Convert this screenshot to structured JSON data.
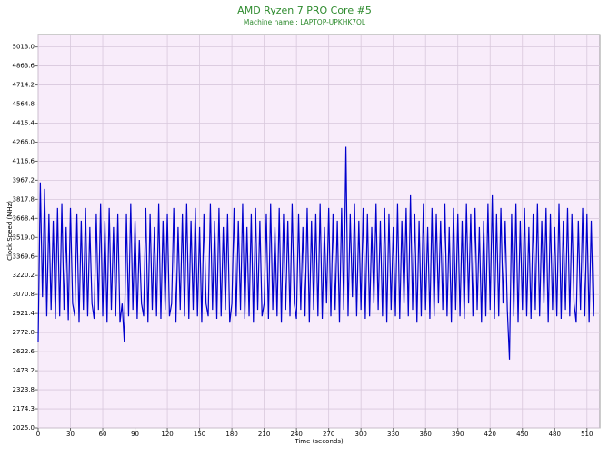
{
  "chart_data": {
    "type": "line",
    "title": "AMD Ryzen 7 PRO Core #5",
    "subtitle": "Machine name : LAPTOP-UPKHK7OL",
    "x_label": "Time (seconds)",
    "y_label": "Clock Speed (MHz)",
    "xlim": [
      0,
      522
    ],
    "xticks": [
      0,
      30,
      60,
      90,
      120,
      150,
      180,
      210,
      240,
      270,
      300,
      330,
      360,
      390,
      420,
      450,
      480,
      510
    ],
    "ylim": [
      2025,
      5110
    ],
    "yticks": [
      {
        "value": 2025,
        "label": "2025.0"
      },
      {
        "value": 2174.3,
        "label": "2174.3"
      },
      {
        "value": 2323.8,
        "label": "2323.8"
      },
      {
        "value": 2473.2,
        "label": "2473.2"
      },
      {
        "value": 2622.6,
        "label": "2622.6"
      },
      {
        "value": 2772,
        "label": "2772.0"
      },
      {
        "value": 2921.4,
        "label": "2921.4"
      },
      {
        "value": 3070.8,
        "label": "3070.8"
      },
      {
        "value": 3220.2,
        "label": "3220.2"
      },
      {
        "value": 3369.6,
        "label": "3369.6"
      },
      {
        "value": 3519,
        "label": "3519.0"
      },
      {
        "value": 3668.4,
        "label": "3668.4"
      },
      {
        "value": 3817.8,
        "label": "3817.8"
      },
      {
        "value": 3967.2,
        "label": "3967.2"
      },
      {
        "value": 4116.6,
        "label": "4116.6"
      },
      {
        "value": 4266,
        "label": "4266.0"
      },
      {
        "value": 4415.4,
        "label": "4415.4"
      },
      {
        "value": 4564.8,
        "label": "4564.8"
      },
      {
        "value": 4714.2,
        "label": "4714.2"
      },
      {
        "value": 4863.6,
        "label": "4863.6"
      },
      {
        "value": 5013,
        "label": "5013.0"
      }
    ],
    "grid": true,
    "x": [
      0,
      2,
      4,
      6,
      8,
      10,
      12,
      14,
      16,
      18,
      20,
      22,
      24,
      26,
      28,
      30,
      32,
      34,
      36,
      38,
      40,
      42,
      44,
      46,
      48,
      50,
      52,
      54,
      56,
      58,
      60,
      62,
      64,
      66,
      68,
      70,
      72,
      74,
      76,
      78,
      80,
      82,
      84,
      86,
      88,
      90,
      92,
      94,
      96,
      98,
      100,
      102,
      104,
      106,
      108,
      110,
      112,
      114,
      116,
      118,
      120,
      122,
      124,
      126,
      128,
      130,
      132,
      134,
      136,
      138,
      140,
      142,
      144,
      146,
      148,
      150,
      152,
      154,
      156,
      158,
      160,
      162,
      164,
      166,
      168,
      170,
      172,
      174,
      176,
      178,
      180,
      182,
      184,
      186,
      188,
      190,
      192,
      194,
      196,
      198,
      200,
      202,
      204,
      206,
      208,
      210,
      212,
      214,
      216,
      218,
      220,
      222,
      224,
      226,
      228,
      230,
      232,
      234,
      236,
      238,
      240,
      242,
      244,
      246,
      248,
      250,
      252,
      254,
      256,
      258,
      260,
      262,
      264,
      266,
      268,
      270,
      272,
      274,
      276,
      278,
      280,
      282,
      284,
      286,
      288,
      290,
      292,
      294,
      296,
      298,
      300,
      302,
      304,
      306,
      308,
      310,
      312,
      314,
      316,
      318,
      320,
      322,
      324,
      326,
      328,
      330,
      332,
      334,
      336,
      338,
      340,
      342,
      344,
      346,
      348,
      350,
      352,
      354,
      356,
      358,
      360,
      362,
      364,
      366,
      368,
      370,
      372,
      374,
      376,
      378,
      380,
      382,
      384,
      386,
      388,
      390,
      392,
      394,
      396,
      398,
      400,
      402,
      404,
      406,
      408,
      410,
      412,
      414,
      416,
      418,
      420,
      422,
      424,
      426,
      428,
      430,
      432,
      434,
      436,
      438,
      440,
      442,
      444,
      446,
      448,
      450,
      452,
      454,
      456,
      458,
      460,
      462,
      464,
      466,
      468,
      470,
      472,
      474,
      476,
      478,
      480,
      482,
      484,
      486,
      488,
      490,
      492,
      494,
      496,
      498,
      500,
      502,
      504,
      506,
      508,
      510,
      512,
      514,
      516
    ],
    "series": [
      {
        "name": "Clock Speed",
        "color": "#0000cc",
        "values": [
          2700,
          3950,
          3050,
          3900,
          2900,
          3700,
          2950,
          3650,
          2880,
          3750,
          2900,
          3780,
          2950,
          3600,
          2870,
          3750,
          3000,
          2900,
          3700,
          2850,
          3650,
          2950,
          3750,
          2900,
          3600,
          3000,
          2880,
          3700,
          2950,
          3780,
          2900,
          3650,
          2850,
          3750,
          2950,
          3600,
          2900,
          3700,
          2850,
          3000,
          2700,
          3700,
          2900,
          3780,
          2950,
          3650,
          2880,
          3500,
          3000,
          2900,
          3750,
          2850,
          3700,
          2950,
          3600,
          2900,
          3780,
          2880,
          3650,
          2950,
          3700,
          2900,
          3000,
          3750,
          2850,
          3600,
          2950,
          3700,
          2900,
          3780,
          2880,
          3650,
          2950,
          3750,
          2900,
          3600,
          2850,
          3700,
          3000,
          2900,
          3780,
          2950,
          3650,
          2880,
          3750,
          2900,
          3600,
          2950,
          3700,
          2850,
          3000,
          3750,
          2900,
          3650,
          2950,
          3780,
          2880,
          3600,
          2900,
          3700,
          2850,
          3750,
          2950,
          3650,
          2900,
          3000,
          3700,
          2880,
          3780,
          2950,
          3600,
          2900,
          3750,
          2850,
          3700,
          2950,
          3650,
          2900,
          3780,
          3000,
          2880,
          3700,
          2950,
          3600,
          2900,
          3750,
          2850,
          3650,
          2950,
          3700,
          2900,
          3780,
          2880,
          3600,
          3000,
          3750,
          2900,
          3700,
          2950,
          3650,
          2850,
          3750,
          2950,
          4230,
          2900,
          3700,
          3050,
          3780,
          2900,
          3650,
          2950,
          3750,
          2880,
          3700,
          2900,
          3600,
          3000,
          3780,
          2950,
          3650,
          2900,
          3750,
          2850,
          3700,
          2950,
          3600,
          2900,
          3780,
          2880,
          3650,
          3000,
          3750,
          2900,
          3850,
          2950,
          3700,
          2850,
          3650,
          2900,
          3780,
          2950,
          3600,
          2880,
          3750,
          2900,
          3700,
          3000,
          3650,
          2950,
          3780,
          2900,
          3600,
          2850,
          3750,
          2950,
          3700,
          2900,
          3650,
          2880,
          3780,
          3000,
          3700,
          2900,
          3750,
          2950,
          3600,
          2850,
          3650,
          2900,
          3780,
          2950,
          3850,
          2880,
          3700,
          2900,
          3750,
          3000,
          3650,
          2950,
          2560,
          3700,
          2900,
          3780,
          2850,
          3650,
          2950,
          3750,
          2900,
          3600,
          2880,
          3700,
          2950,
          3780,
          2900,
          3650,
          3000,
          3750,
          2850,
          3700,
          2950,
          3600,
          2900,
          3780,
          2880,
          3650,
          2950,
          3750,
          2900,
          3700,
          3000,
          2850,
          3650,
          2950,
          3750,
          2900,
          3700,
          2850,
          3650,
          2900
        ]
      }
    ]
  }
}
